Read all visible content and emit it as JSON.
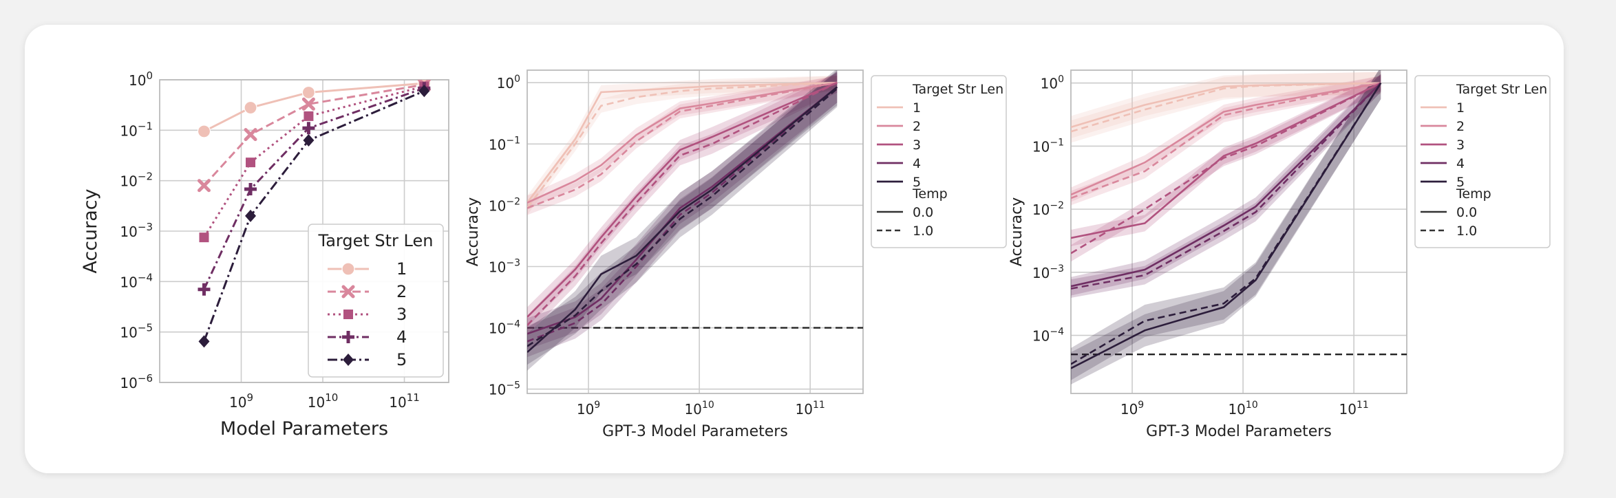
{
  "colors": {
    "1": "#efc0b6",
    "2": "#d9879c",
    "3": "#b1527f",
    "4": "#6f2e63",
    "5": "#2c1d3b",
    "grid": "#cccccc",
    "ref": "#222222"
  },
  "chart_data": [
    {
      "type": "line",
      "xlabel": "Model Parameters",
      "ylabel": "Accuracy",
      "xscale": "log",
      "yscale": "log",
      "xlim": [
        100000000,
        350000000000
      ],
      "ylim": [
        1e-06,
        1
      ],
      "xticks": [
        {
          "value": 1000000000,
          "base": "10",
          "exp": "9"
        },
        {
          "value": 10000000000,
          "base": "10",
          "exp": "10"
        },
        {
          "value": 100000000000,
          "base": "10",
          "exp": "11"
        }
      ],
      "yticks": [
        {
          "value": 1,
          "base": "10",
          "exp": "0"
        },
        {
          "value": 0.1,
          "base": "10",
          "exp": "−1"
        },
        {
          "value": 0.01,
          "base": "10",
          "exp": "−2"
        },
        {
          "value": 0.001,
          "base": "10",
          "exp": "−3"
        },
        {
          "value": 0.0001,
          "base": "10",
          "exp": "−4"
        },
        {
          "value": 1e-05,
          "base": "10",
          "exp": "−5"
        },
        {
          "value": 1e-06,
          "base": "10",
          "exp": "−6"
        }
      ],
      "grid": true,
      "legend": {
        "position": "lower-right",
        "title": "Target Str Len",
        "entries": [
          "1",
          "2",
          "3",
          "4",
          "5"
        ]
      },
      "x": [
        350000000,
        1300000000,
        6700000000,
        175000000000
      ],
      "series": [
        {
          "name": "1",
          "marker": "circle",
          "dash": "solid",
          "values": [
            0.095,
            0.28,
            0.56,
            0.85
          ]
        },
        {
          "name": "2",
          "marker": "x",
          "dash": "dash",
          "values": [
            0.008,
            0.082,
            0.33,
            0.8
          ]
        },
        {
          "name": "3",
          "marker": "square",
          "dash": "dot",
          "values": [
            0.00075,
            0.023,
            0.19,
            0.74
          ]
        },
        {
          "name": "4",
          "marker": "plus",
          "dash": "dashdot",
          "values": [
            7e-05,
            0.0068,
            0.11,
            0.68
          ]
        },
        {
          "name": "5",
          "marker": "diamond",
          "dash": "dashdot2",
          "values": [
            6.5e-06,
            0.002,
            0.063,
            0.6
          ]
        }
      ]
    },
    {
      "type": "line",
      "xlabel": "GPT-3 Model Parameters",
      "ylabel": "Accuracy",
      "xscale": "log",
      "yscale": "log",
      "xlim": [
        280000000,
        300000000000
      ],
      "ylim": [
        8.5e-06,
        1.6
      ],
      "xticks": [
        {
          "value": 1000000000,
          "base": "10",
          "exp": "9"
        },
        {
          "value": 10000000000,
          "base": "10",
          "exp": "10"
        },
        {
          "value": 100000000000,
          "base": "10",
          "exp": "11"
        }
      ],
      "yticks": [
        {
          "value": 1,
          "base": "10",
          "exp": "0"
        },
        {
          "value": 0.1,
          "base": "10",
          "exp": "−1"
        },
        {
          "value": 0.01,
          "base": "10",
          "exp": "−2"
        },
        {
          "value": 0.001,
          "base": "10",
          "exp": "−3"
        },
        {
          "value": 0.0001,
          "base": "10",
          "exp": "−4"
        },
        {
          "value": 1e-05,
          "base": "10",
          "exp": "−5"
        }
      ],
      "grid": true,
      "reference_line": 0.0001,
      "legend": {
        "position": "outside-right",
        "title": "Target Str Len",
        "entries": [
          "1",
          "2",
          "3",
          "4",
          "5"
        ],
        "style_title": "Temp",
        "style_entries": [
          "0.0",
          "1.0"
        ]
      },
      "x": [
        280000000,
        760000000,
        1300000000,
        2700000000,
        6700000000,
        13000000000,
        175000000000
      ],
      "series": [
        {
          "name": "1",
          "temp": "0.0",
          "values": [
            0.011,
            0.12,
            0.7,
            0.75,
            0.82,
            0.88,
            1.0
          ],
          "band": 1.3
        },
        {
          "name": "1",
          "temp": "1.0",
          "values": [
            0.009,
            0.1,
            0.42,
            0.58,
            0.73,
            0.8,
            1.0
          ],
          "band": 1.3
        },
        {
          "name": "2",
          "temp": "0.0",
          "values": [
            0.011,
            0.025,
            0.045,
            0.14,
            0.38,
            0.46,
            1.0
          ],
          "band": 1.3
        },
        {
          "name": "2",
          "temp": "1.0",
          "values": [
            0.009,
            0.018,
            0.032,
            0.11,
            0.34,
            0.42,
            1.0
          ],
          "band": 1.3
        },
        {
          "name": "3",
          "temp": "0.0",
          "values": [
            0.00015,
            0.0009,
            0.003,
            0.014,
            0.08,
            0.13,
            1.0
          ],
          "band": 1.45
        },
        {
          "name": "3",
          "temp": "1.0",
          "values": [
            0.00011,
            0.0007,
            0.0024,
            0.011,
            0.065,
            0.1,
            1.0
          ],
          "band": 1.45
        },
        {
          "name": "4",
          "temp": "0.0",
          "values": [
            8e-05,
            0.00015,
            0.0003,
            0.0013,
            0.009,
            0.02,
            0.85
          ],
          "band": 1.8
        },
        {
          "name": "4",
          "temp": "1.0",
          "values": [
            6e-05,
            0.00012,
            0.00024,
            0.001,
            0.007,
            0.016,
            0.85
          ],
          "band": 1.8
        },
        {
          "name": "5",
          "temp": "0.0",
          "values": [
            4e-05,
            0.0002,
            0.00075,
            0.0015,
            0.008,
            0.018,
            0.85
          ],
          "band": 2.0
        },
        {
          "name": "5",
          "temp": "1.0",
          "values": [
            5e-05,
            0.00016,
            0.0004,
            0.0011,
            0.006,
            0.014,
            0.8
          ],
          "band": 2.0
        }
      ]
    },
    {
      "type": "line",
      "xlabel": "GPT-3 Model Parameters",
      "ylabel": "Accuracy",
      "xscale": "log",
      "yscale": "log",
      "xlim": [
        280000000,
        300000000000
      ],
      "ylim": [
        1.2e-05,
        1.6
      ],
      "xticks": [
        {
          "value": 1000000000,
          "base": "10",
          "exp": "9"
        },
        {
          "value": 10000000000,
          "base": "10",
          "exp": "10"
        },
        {
          "value": 100000000000,
          "base": "10",
          "exp": "11"
        }
      ],
      "yticks": [
        {
          "value": 1,
          "base": "10",
          "exp": "0"
        },
        {
          "value": 0.1,
          "base": "10",
          "exp": "−1"
        },
        {
          "value": 0.01,
          "base": "10",
          "exp": "−2"
        },
        {
          "value": 0.001,
          "base": "10",
          "exp": "−3"
        },
        {
          "value": 0.0001,
          "base": "10",
          "exp": "−4"
        }
      ],
      "grid": true,
      "reference_line": 5e-05,
      "legend": {
        "position": "outside-right",
        "title": "Target Str Len",
        "entries": [
          "1",
          "2",
          "3",
          "4",
          "5"
        ],
        "style_title": "Temp",
        "style_entries": [
          "0.0",
          "1.0"
        ]
      },
      "x": [
        280000000,
        1300000000,
        6700000000,
        13000000000,
        175000000000
      ],
      "series": [
        {
          "name": "1",
          "temp": "0.0",
          "values": [
            0.2,
            0.45,
            0.88,
            0.92,
            1.0
          ],
          "band": 1.5
        },
        {
          "name": "1",
          "temp": "1.0",
          "values": [
            0.17,
            0.38,
            0.82,
            0.9,
            1.0
          ],
          "band": 1.5
        },
        {
          "name": "2",
          "temp": "0.0",
          "values": [
            0.017,
            0.055,
            0.35,
            0.45,
            1.0
          ],
          "band": 1.3
        },
        {
          "name": "2",
          "temp": "1.0",
          "values": [
            0.015,
            0.04,
            0.31,
            0.4,
            1.0
          ],
          "band": 1.3
        },
        {
          "name": "3",
          "temp": "0.0",
          "values": [
            0.0035,
            0.006,
            0.07,
            0.11,
            1.0
          ],
          "band": 1.35
        },
        {
          "name": "3",
          "temp": "1.0",
          "values": [
            0.002,
            0.01,
            0.065,
            0.1,
            1.0
          ],
          "band": 1.35
        },
        {
          "name": "4",
          "temp": "0.0",
          "values": [
            0.0006,
            0.0011,
            0.0055,
            0.011,
            1.0
          ],
          "band": 1.4
        },
        {
          "name": "4",
          "temp": "1.0",
          "values": [
            0.00055,
            0.0009,
            0.0045,
            0.009,
            1.0
          ],
          "band": 1.4
        },
        {
          "name": "5",
          "temp": "0.0",
          "values": [
            3e-05,
            0.00012,
            0.00028,
            0.00075,
            1.0
          ],
          "band": 1.8
        },
        {
          "name": "5",
          "temp": "1.0",
          "values": [
            3.5e-05,
            0.00017,
            0.00032,
            0.0008,
            1.0
          ],
          "band": 1.8
        }
      ]
    }
  ]
}
